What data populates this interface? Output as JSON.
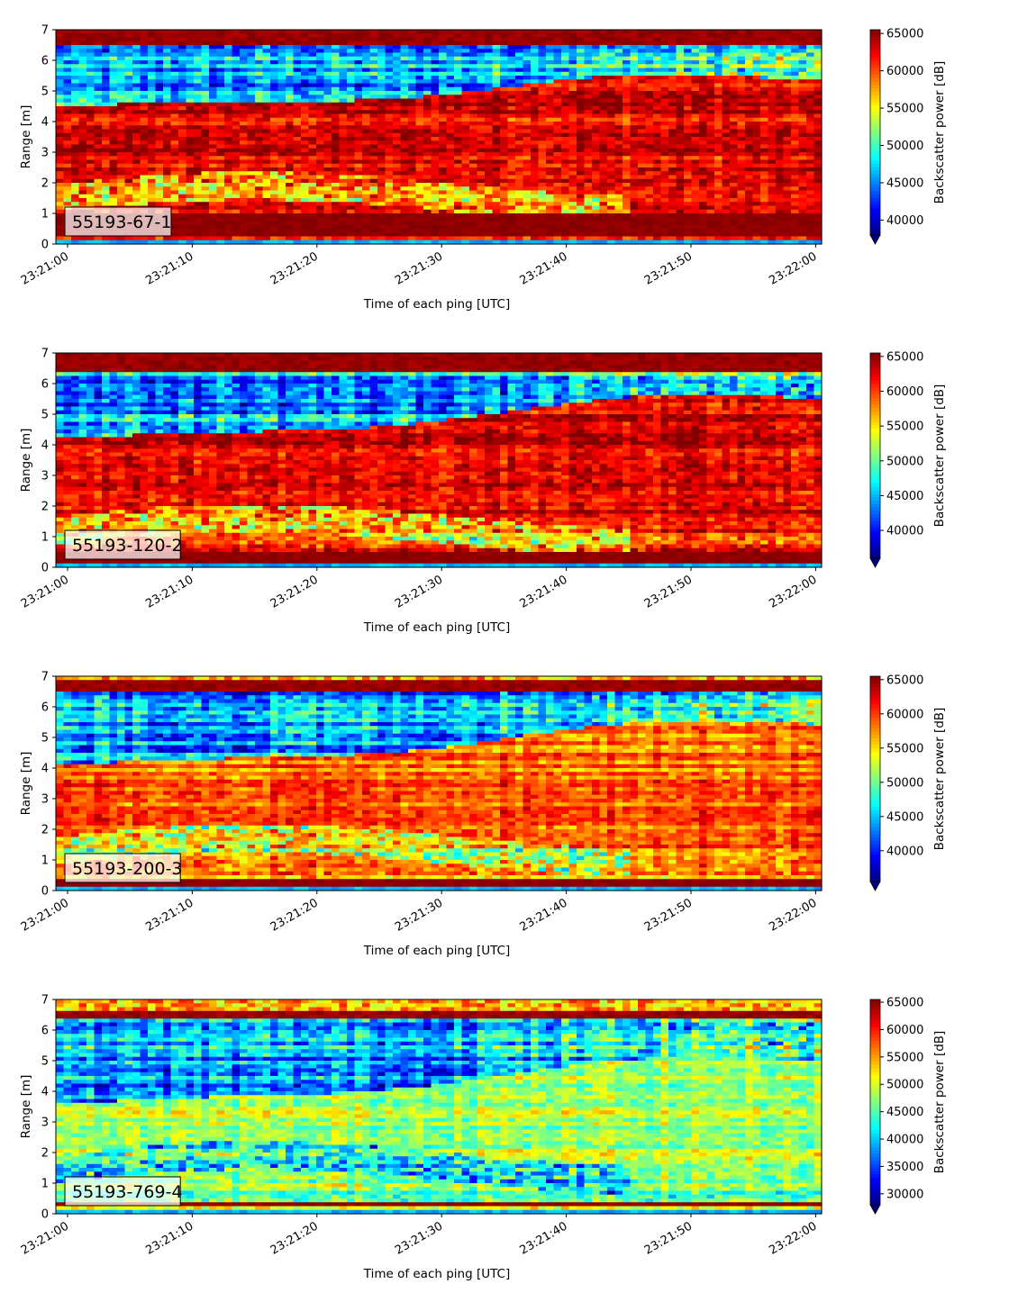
{
  "figure": {
    "x_ticks": [
      "23:21:00",
      "23:21:10",
      "23:21:20",
      "23:21:30",
      "23:21:40",
      "23:21:50",
      "23:22:00"
    ],
    "y_ticks": [
      "0",
      "1",
      "2",
      "3",
      "4",
      "5",
      "6",
      "7"
    ]
  },
  "chart_data": [
    {
      "type": "heatmap",
      "label": "55193-67-1",
      "xlabel": "Time of each ping [UTC]",
      "ylabel": "Range [m]",
      "xlim": [
        "23:21:00",
        "23:22:00"
      ],
      "ylim": [
        0,
        7
      ],
      "colorbar": {
        "label": "Backscatter power [dB]",
        "ticks": [
          40000,
          45000,
          50000,
          55000,
          60000,
          65000
        ],
        "range": [
          38000,
          65500
        ],
        "colormap": "jet"
      },
      "profile": {
        "top_band": [
          6.5,
          7.0
        ],
        "bottom_band": [
          0.25,
          1.05
        ],
        "upper_boundary_start_m": 4.5,
        "upper_boundary_end_m": 5.6,
        "lower_green_layer_m": 1.5,
        "mid_level": "high"
      }
    },
    {
      "type": "heatmap",
      "label": "55193-120-2",
      "xlabel": "Time of each ping [UTC]",
      "ylabel": "Range [m]",
      "xlim": [
        "23:21:00",
        "23:22:00"
      ],
      "ylim": [
        0,
        7
      ],
      "colorbar": {
        "label": "Backscatter power [dB]",
        "ticks": [
          40000,
          45000,
          50000,
          55000,
          60000,
          65000
        ],
        "range": [
          36000,
          65500
        ],
        "colormap": "jet"
      },
      "profile": {
        "top_band": [
          6.4,
          6.95
        ],
        "bottom_band": [
          0.15,
          0.5
        ],
        "upper_boundary_start_m": 4.2,
        "upper_boundary_end_m": 5.8,
        "lower_green_layer_m": 1.2,
        "mid_level": "high"
      }
    },
    {
      "type": "heatmap",
      "label": "55193-200-3",
      "xlabel": "Time of each ping [UTC]",
      "ylabel": "Range [m]",
      "xlim": [
        "23:21:00",
        "23:22:00"
      ],
      "ylim": [
        0,
        7
      ],
      "colorbar": {
        "label": "Backscatter power [dB]",
        "ticks": [
          40000,
          45000,
          50000,
          55000,
          60000,
          65000
        ],
        "range": [
          35500,
          65500
        ],
        "colormap": "jet"
      },
      "profile": {
        "top_band": [
          6.5,
          6.85
        ],
        "bottom_band": [
          0.15,
          0.4
        ],
        "upper_boundary_start_m": 4.1,
        "upper_boundary_end_m": 5.7,
        "lower_green_layer_m": 1.3,
        "mid_level": "mid-high"
      }
    },
    {
      "type": "heatmap",
      "label": "55193-769-4",
      "xlabel": "Time of each ping [UTC]",
      "ylabel": "Range [m]",
      "xlim": [
        "23:21:00",
        "23:22:00"
      ],
      "ylim": [
        0,
        7
      ],
      "colorbar": {
        "label": "Backscatter power [dB]",
        "ticks": [
          30000,
          35000,
          40000,
          45000,
          50000,
          55000,
          60000,
          65000
        ],
        "range": [
          28000,
          65500
        ],
        "colormap": "jet"
      },
      "profile": {
        "top_band": [
          6.4,
          6.65
        ],
        "bottom_band": [
          0.2,
          0.35
        ],
        "upper_boundary_start_m": 3.6,
        "upper_boundary_end_m": 5.3,
        "lower_green_layer_m": 1.5,
        "mid_level": "mid"
      }
    }
  ]
}
